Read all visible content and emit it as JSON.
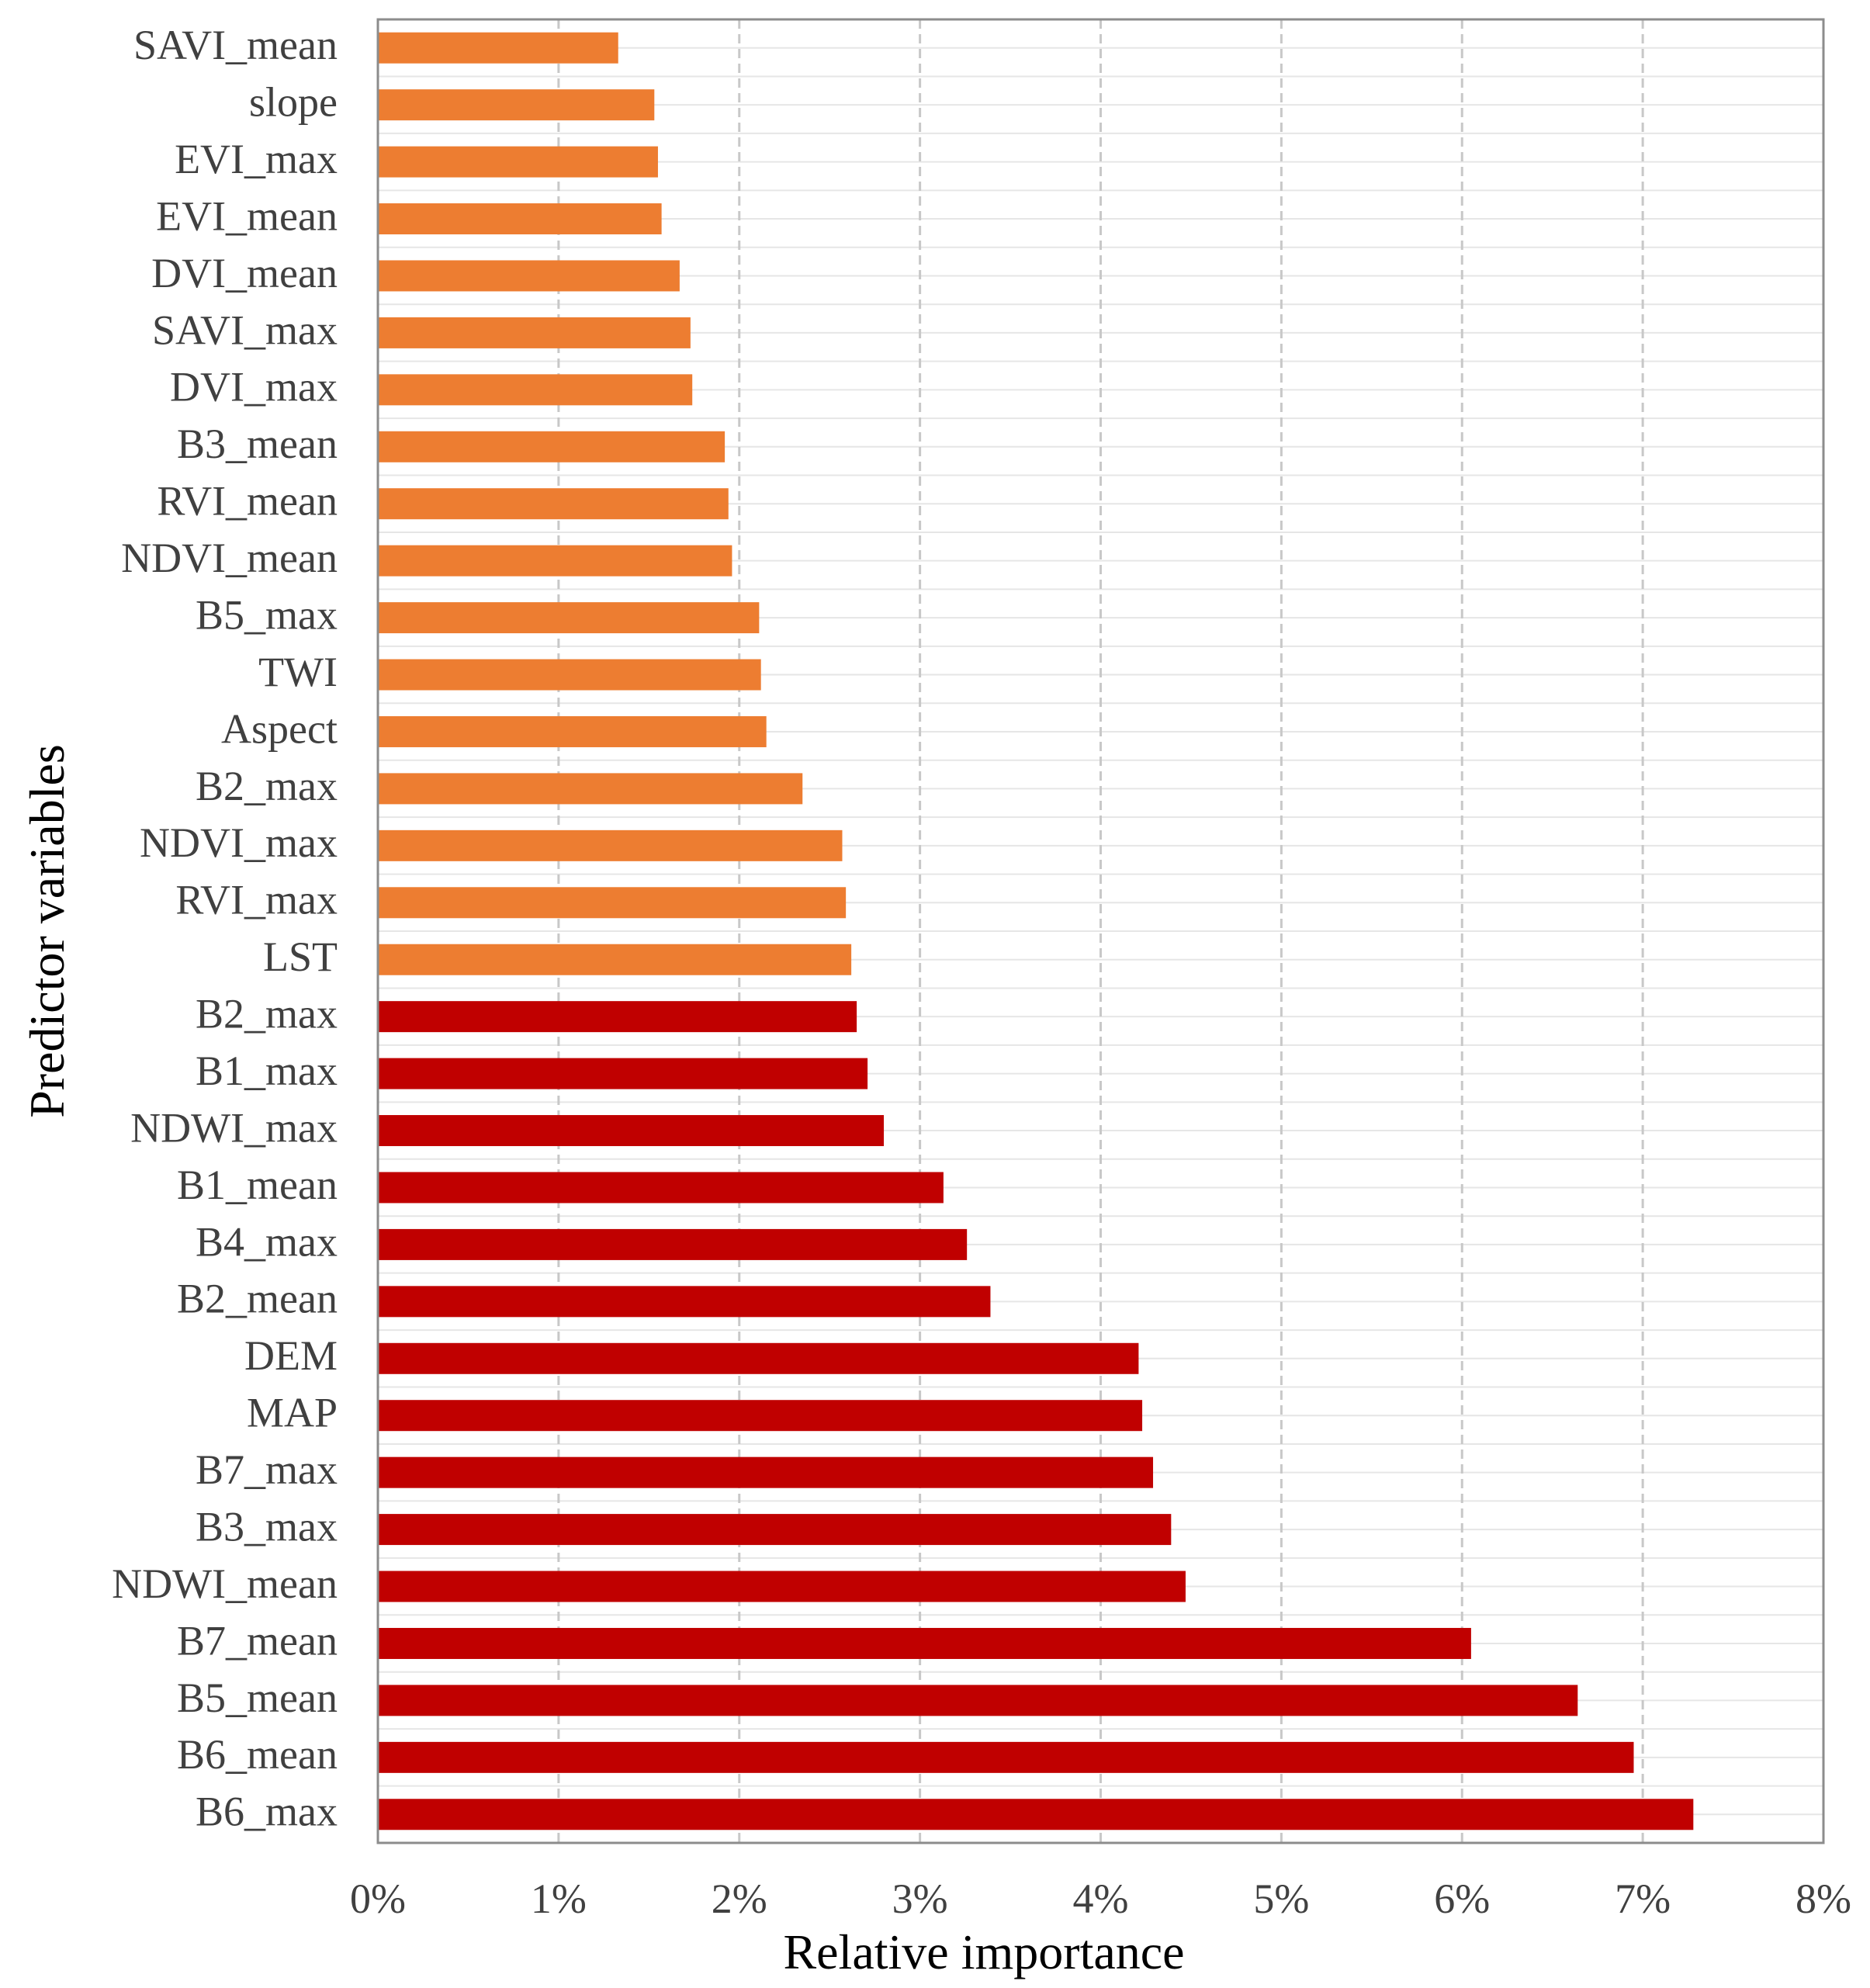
{
  "chart_data": {
    "type": "bar",
    "orientation": "horizontal",
    "title": "",
    "xlabel": "Relative importance",
    "ylabel": "Predictor variables",
    "xlim": [
      0,
      8
    ],
    "x_ticks": [
      "0%",
      "1%",
      "2%",
      "3%",
      "4%",
      "5%",
      "6%",
      "7%",
      "8%"
    ],
    "grid": "vertical dashed major gridlines, horizontal minor gridlines",
    "legend": "none",
    "colors": {
      "top_group": "#ED7D31",
      "bottom_group": "#C00000"
    },
    "categories": [
      "SAVI_mean",
      "slope",
      "EVI_max",
      "EVI_mean",
      "DVI_mean",
      "SAVI_max",
      "DVI_max",
      "B3_mean",
      "RVI_mean",
      "NDVI_mean",
      "B5_max",
      "TWI",
      "Aspect",
      "B2_max",
      "NDVI_max",
      "RVI_max",
      "LST",
      "B2_max",
      "B1_max",
      "NDWI_max",
      "B1_mean",
      "B4_max",
      "B2_mean",
      "DEM",
      "MAP",
      "B7_max",
      "B3_max",
      "NDWI_mean",
      "B7_mean",
      "B5_mean",
      "B6_mean",
      "B6_max"
    ],
    "values": [
      1.33,
      1.53,
      1.55,
      1.57,
      1.67,
      1.73,
      1.74,
      1.92,
      1.94,
      1.96,
      2.11,
      2.12,
      2.15,
      2.35,
      2.57,
      2.59,
      2.62,
      2.65,
      2.71,
      2.8,
      3.13,
      3.26,
      3.39,
      4.21,
      4.23,
      4.29,
      4.39,
      4.47,
      6.05,
      6.64,
      6.95,
      7.28
    ],
    "groups": [
      "top",
      "top",
      "top",
      "top",
      "top",
      "top",
      "top",
      "top",
      "top",
      "top",
      "top",
      "top",
      "top",
      "top",
      "top",
      "top",
      "top",
      "bottom",
      "bottom",
      "bottom",
      "bottom",
      "bottom",
      "bottom",
      "bottom",
      "bottom",
      "bottom",
      "bottom",
      "bottom",
      "bottom",
      "bottom",
      "bottom",
      "bottom"
    ]
  }
}
